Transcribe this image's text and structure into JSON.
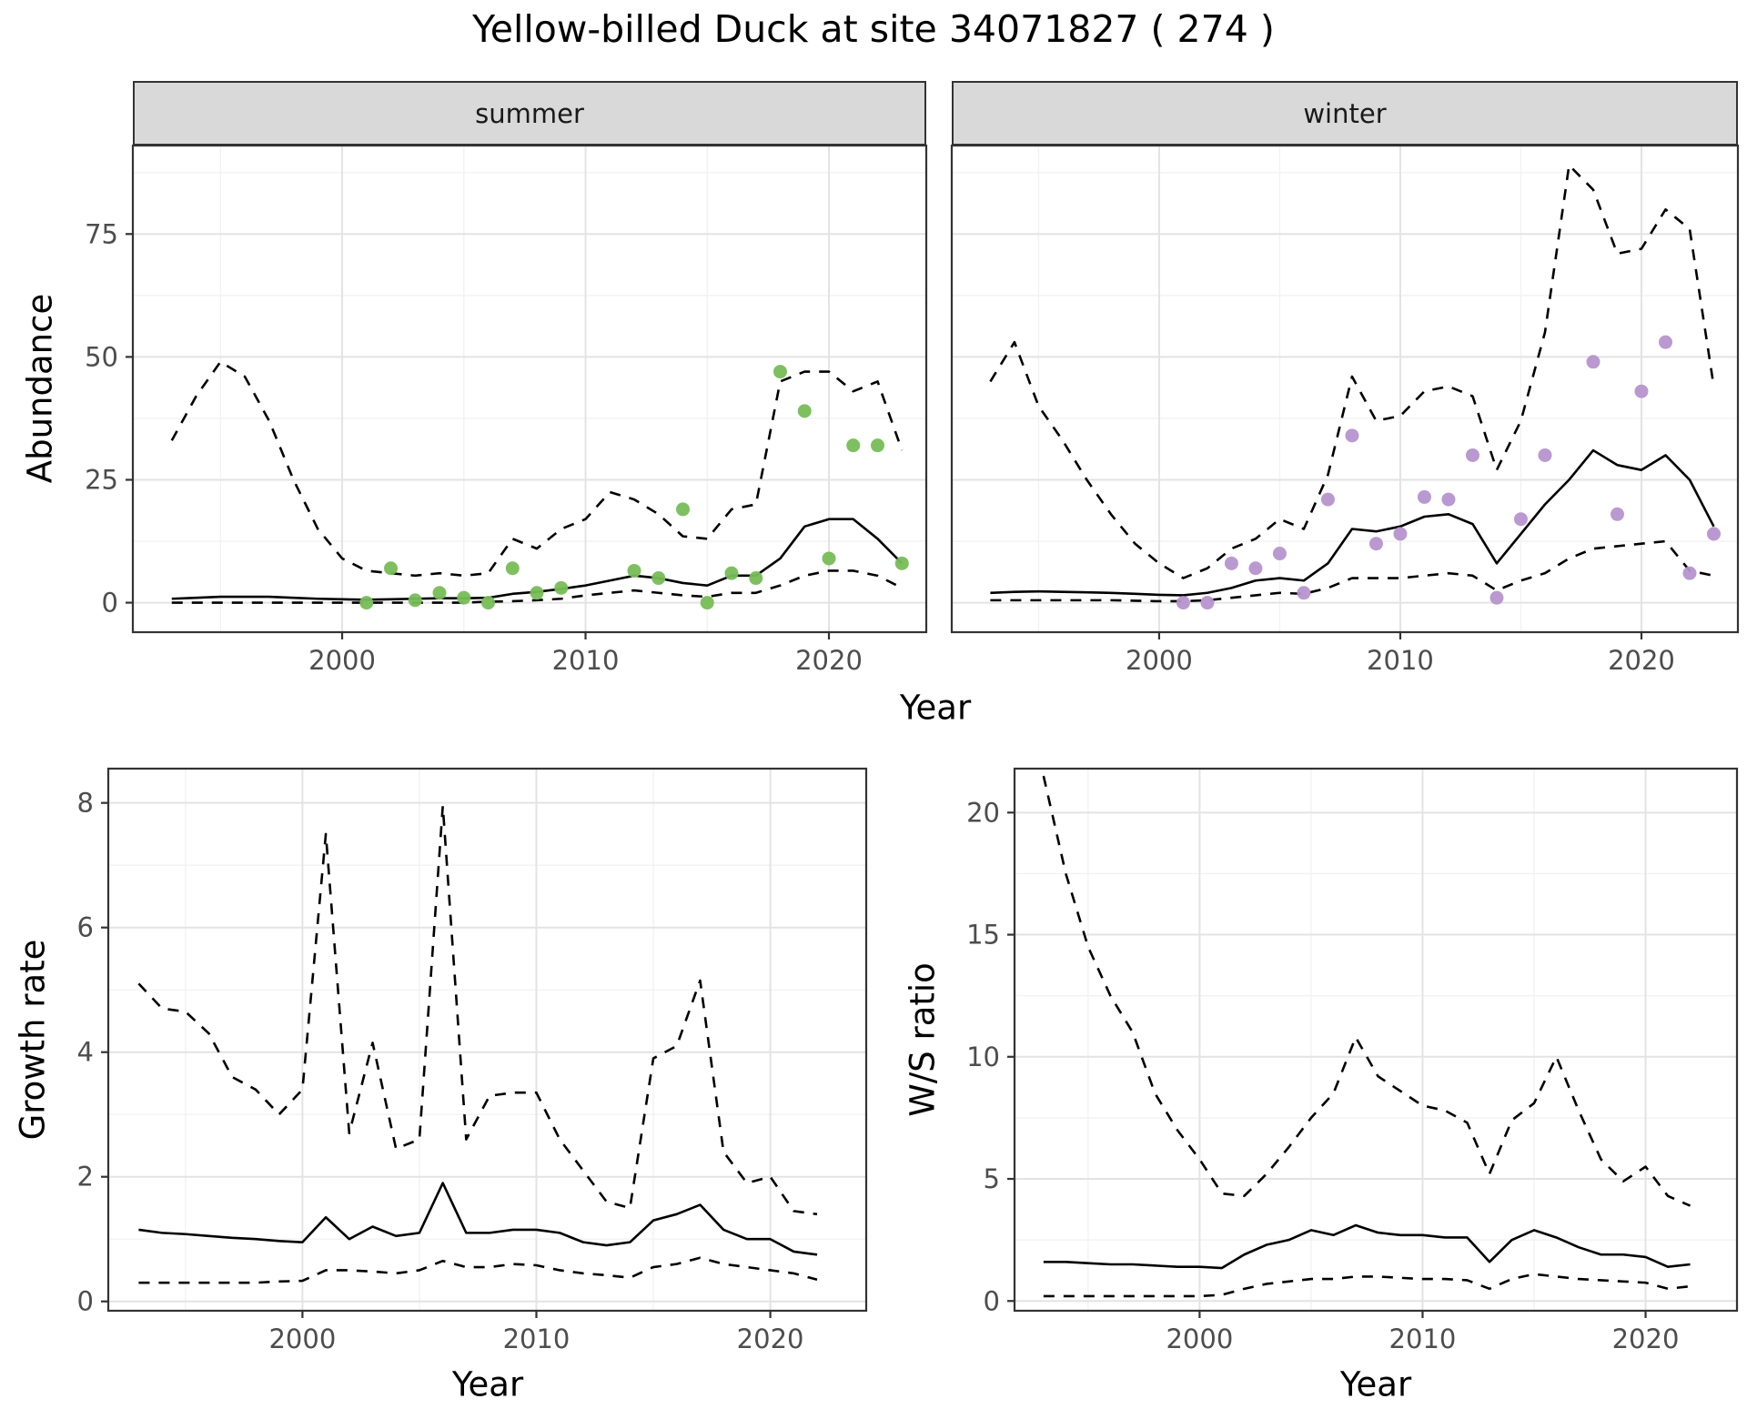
{
  "title": "Yellow-billed Duck at site 34071827 ( 274 )",
  "facets": {
    "summer": "summer",
    "winter": "winter"
  },
  "axis_labels": {
    "abundance": "Abundance",
    "year": "Year",
    "growth_rate": "Growth rate",
    "ws_ratio": "W/S ratio"
  },
  "colors": {
    "summer_points": "#77bd57",
    "winter_points": "#b693ce",
    "line": "#000000",
    "strip_bg": "#d9d9d9",
    "grid_major": "#e3e3e3",
    "grid_minor": "#f2f2f2",
    "tick_text": "#4d4d4d",
    "panel_border": "#333333"
  },
  "chart_data": [
    {
      "id": "abundance-summer",
      "type": "line",
      "facet": "summer",
      "xlabel": "Year",
      "ylabel": "Abundance",
      "xlim": [
        1991.4,
        2024.0
      ],
      "ylim": [
        -6,
        93
      ],
      "xticks": [
        2000,
        2010,
        2020
      ],
      "yticks": [
        0,
        25,
        50,
        75
      ],
      "grid": true,
      "years": [
        1993,
        1994,
        1995,
        1996,
        1997,
        1998,
        1999,
        2000,
        2001,
        2002,
        2003,
        2004,
        2005,
        2006,
        2007,
        2008,
        2009,
        2010,
        2011,
        2012,
        2013,
        2014,
        2015,
        2016,
        2017,
        2018,
        2019,
        2020,
        2021,
        2022,
        2023
      ],
      "series": [
        {
          "name": "upper-ci",
          "style": "dashed",
          "values": [
            33,
            42,
            49,
            46,
            37,
            25,
            15,
            9,
            6.5,
            6,
            5.5,
            6,
            5.5,
            6,
            13,
            11,
            15,
            17,
            22.5,
            21,
            18,
            13.5,
            13,
            19,
            20,
            45,
            47,
            47,
            43,
            45,
            31
          ]
        },
        {
          "name": "median",
          "style": "solid",
          "values": [
            0.8,
            1,
            1.2,
            1.2,
            1.2,
            1,
            0.8,
            0.7,
            0.6,
            0.7,
            0.8,
            0.9,
            0.9,
            1,
            1.8,
            2.2,
            2.8,
            3.5,
            4.5,
            5.5,
            5,
            4,
            3.5,
            5.5,
            5.5,
            9,
            15.5,
            17,
            17,
            13,
            8
          ]
        },
        {
          "name": "lower-ci",
          "style": "dashed",
          "values": [
            0,
            0,
            0,
            0,
            0,
            0,
            0,
            0,
            0,
            0,
            0,
            0,
            0,
            0.2,
            0.3,
            0.5,
            0.8,
            1.5,
            2,
            2.5,
            2,
            1.5,
            1.2,
            2,
            2,
            3.5,
            5.5,
            6.5,
            6.5,
            5.5,
            3
          ]
        }
      ],
      "points": {
        "name": "summer-observed",
        "color": "#77bd57",
        "x": [
          2001,
          2002,
          2003,
          2004,
          2005,
          2006,
          2007,
          2008,
          2009,
          2012,
          2013,
          2014,
          2015,
          2016,
          2017,
          2018,
          2019,
          2020,
          2021,
          2022,
          2023
        ],
        "y": [
          0,
          7,
          0.5,
          2,
          1,
          0,
          7,
          2,
          3,
          6.5,
          5,
          19,
          0,
          6,
          5,
          47,
          39,
          9,
          32,
          32,
          8
        ]
      }
    },
    {
      "id": "abundance-winter",
      "type": "line",
      "facet": "winter",
      "xlabel": "Year",
      "ylabel": "Abundance",
      "xlim": [
        1991.4,
        2024.0
      ],
      "ylim": [
        -6,
        93
      ],
      "xticks": [
        2000,
        2010,
        2020
      ],
      "yticks": [
        0,
        25,
        50,
        75
      ],
      "grid": true,
      "years": [
        1993,
        1994,
        1995,
        1996,
        1997,
        1998,
        1999,
        2000,
        2001,
        2002,
        2003,
        2004,
        2005,
        2006,
        2007,
        2008,
        2009,
        2010,
        2011,
        2012,
        2013,
        2014,
        2015,
        2016,
        2017,
        2018,
        2019,
        2020,
        2021,
        2022,
        2023
      ],
      "series": [
        {
          "name": "upper-ci",
          "style": "dashed",
          "values": [
            45,
            53,
            40,
            33,
            25,
            18,
            12,
            8,
            5,
            7,
            11,
            13,
            17,
            15,
            26,
            46,
            37,
            38,
            43,
            44,
            42,
            27,
            37,
            55,
            89,
            84,
            71,
            72,
            80,
            76,
            44
          ]
        },
        {
          "name": "median",
          "style": "solid",
          "values": [
            2,
            2.2,
            2.3,
            2.2,
            2.1,
            2,
            1.8,
            1.6,
            1.5,
            2,
            3,
            4.5,
            5,
            4.5,
            8,
            15,
            14.5,
            15.5,
            17.5,
            18,
            16,
            8,
            14,
            20,
            25,
            31,
            28,
            27,
            30,
            25,
            15.5
          ]
        },
        {
          "name": "lower-ci",
          "style": "dashed",
          "values": [
            0.5,
            0.5,
            0.5,
            0.5,
            0.5,
            0.5,
            0.4,
            0.3,
            0.3,
            0.5,
            1,
            1.5,
            2,
            1.8,
            3,
            5,
            5,
            5,
            5.5,
            6,
            5.5,
            2.5,
            4.5,
            6,
            9,
            11,
            11.5,
            12,
            12.5,
            6.5,
            5.5
          ]
        }
      ],
      "points": {
        "name": "winter-observed",
        "color": "#b693ce",
        "x": [
          2001,
          2002,
          2003,
          2004,
          2005,
          2006,
          2007,
          2008,
          2009,
          2010,
          2011,
          2012,
          2013,
          2014,
          2015,
          2016,
          2018,
          2019,
          2020,
          2021,
          2022,
          2023
        ],
        "y": [
          0,
          0,
          8,
          7,
          10,
          2,
          21,
          34,
          12,
          14,
          21.5,
          21,
          30,
          1,
          17,
          30,
          49,
          18,
          43,
          53,
          6,
          14
        ]
      }
    },
    {
      "id": "growth-rate",
      "type": "line",
      "facet": "",
      "xlabel": "Year",
      "ylabel": "Growth rate",
      "xlim": [
        1991.7,
        2024.1
      ],
      "ylim": [
        -0.15,
        8.55
      ],
      "xticks": [
        2000,
        2010,
        2020
      ],
      "yticks": [
        0,
        2,
        4,
        6,
        8
      ],
      "grid": true,
      "years": [
        1993,
        1994,
        1995,
        1996,
        1997,
        1998,
        1999,
        2000,
        2001,
        2002,
        2003,
        2004,
        2005,
        2006,
        2007,
        2008,
        2009,
        2010,
        2011,
        2012,
        2013,
        2014,
        2015,
        2016,
        2017,
        2018,
        2019,
        2020,
        2021,
        2022
      ],
      "series": [
        {
          "name": "upper-ci",
          "style": "dashed",
          "values": [
            5.1,
            4.7,
            4.65,
            4.3,
            3.6,
            3.4,
            3.0,
            3.4,
            7.5,
            2.7,
            4.15,
            2.45,
            2.6,
            7.95,
            2.6,
            3.3,
            3.35,
            3.35,
            2.6,
            2.1,
            1.6,
            1.5,
            3.9,
            4.1,
            5.15,
            2.4,
            1.9,
            2.0,
            1.45,
            1.4
          ]
        },
        {
          "name": "median",
          "style": "solid",
          "values": [
            1.15,
            1.1,
            1.08,
            1.05,
            1.02,
            1.0,
            0.97,
            0.95,
            1.35,
            1.0,
            1.2,
            1.05,
            1.1,
            1.9,
            1.1,
            1.1,
            1.15,
            1.15,
            1.1,
            0.95,
            0.9,
            0.95,
            1.3,
            1.4,
            1.55,
            1.15,
            1.0,
            1.0,
            0.8,
            0.75
          ]
        },
        {
          "name": "lower-ci",
          "style": "dashed",
          "values": [
            0.3,
            0.3,
            0.3,
            0.3,
            0.3,
            0.3,
            0.32,
            0.33,
            0.5,
            0.5,
            0.48,
            0.45,
            0.5,
            0.65,
            0.55,
            0.55,
            0.6,
            0.58,
            0.5,
            0.45,
            0.42,
            0.38,
            0.55,
            0.6,
            0.7,
            0.6,
            0.55,
            0.5,
            0.45,
            0.35
          ]
        }
      ]
    },
    {
      "id": "ws-ratio",
      "type": "line",
      "facet": "",
      "xlabel": "Year",
      "ylabel": "W/S ratio",
      "xlim": [
        1991.7,
        2024.1
      ],
      "ylim": [
        -0.4,
        21.8
      ],
      "xticks": [
        2000,
        2010,
        2020
      ],
      "yticks": [
        0,
        5,
        10,
        15,
        20
      ],
      "grid": true,
      "years": [
        1993,
        1994,
        1995,
        1996,
        1997,
        1998,
        1999,
        2000,
        2001,
        2002,
        2003,
        2004,
        2005,
        2006,
        2007,
        2008,
        2009,
        2010,
        2011,
        2012,
        2013,
        2014,
        2015,
        2016,
        2017,
        2018,
        2019,
        2020,
        2021,
        2022
      ],
      "series": [
        {
          "name": "upper-ci",
          "style": "dashed",
          "values": [
            21.5,
            17.5,
            14.5,
            12.5,
            11,
            8.5,
            7,
            5.8,
            4.4,
            4.3,
            5.2,
            6.3,
            7.5,
            8.5,
            10.8,
            9.2,
            8.6,
            8.0,
            7.8,
            7.3,
            5.2,
            7.4,
            8.1,
            10.0,
            7.8,
            5.8,
            4.9,
            5.5,
            4.3,
            3.9
          ]
        },
        {
          "name": "median",
          "style": "solid",
          "values": [
            1.6,
            1.6,
            1.55,
            1.5,
            1.5,
            1.45,
            1.4,
            1.4,
            1.35,
            1.9,
            2.3,
            2.5,
            2.9,
            2.7,
            3.1,
            2.8,
            2.7,
            2.7,
            2.6,
            2.6,
            1.6,
            2.5,
            2.9,
            2.6,
            2.2,
            1.9,
            1.9,
            1.8,
            1.4,
            1.5
          ]
        },
        {
          "name": "lower-ci",
          "style": "dashed",
          "values": [
            0.2,
            0.2,
            0.2,
            0.2,
            0.2,
            0.2,
            0.2,
            0.2,
            0.25,
            0.5,
            0.7,
            0.8,
            0.9,
            0.9,
            1.0,
            1.0,
            0.95,
            0.9,
            0.9,
            0.85,
            0.5,
            0.9,
            1.1,
            1.0,
            0.9,
            0.85,
            0.8,
            0.75,
            0.5,
            0.6
          ]
        }
      ]
    }
  ]
}
